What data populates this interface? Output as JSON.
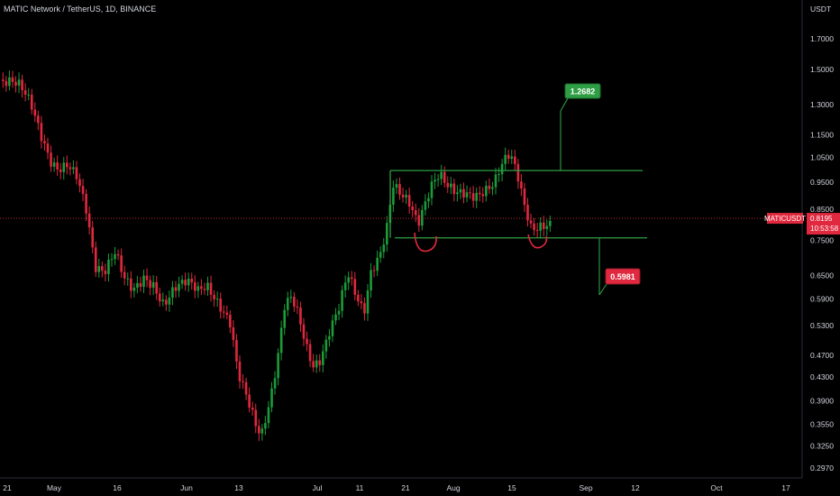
{
  "header": {
    "title": "MATIC Network / TetherUS, 1D, BINANCE"
  },
  "axis": {
    "currency": "USDT"
  },
  "colors": {
    "up": "#1b9c3a",
    "down": "#e0283e",
    "line": "#2ea043",
    "grid": "#000000",
    "price_line": "#e0283e"
  },
  "last": {
    "symbol": "MATICUSDT",
    "price": "0.8195",
    "countdown": "10:53:58"
  },
  "targets": {
    "up_label": "1.2682",
    "down_label": "0.5981"
  },
  "chart_data": {
    "type": "candlestick",
    "title": "MATIC Network / TetherUS, 1D, BINANCE",
    "ylabel": "USDT",
    "yscale": "log",
    "ylim": [
      0.285,
      2.0
    ],
    "y_ticks": [
      "1.7000",
      "1.5000",
      "1.3000",
      "1.1500",
      "1.0500",
      "0.9500",
      "0.8500",
      "0.8195",
      "0.7500",
      "0.6500",
      "0.5900",
      "0.5300",
      "0.4700",
      "0.4300",
      "0.3900",
      "0.3550",
      "0.3250",
      "0.2970"
    ],
    "x_ticks": [
      "21",
      "May",
      "16",
      "Jun",
      "13",
      "Jul",
      "11",
      "21",
      "Aug",
      "15",
      "Sep",
      "12",
      "Oct",
      "17"
    ],
    "key_points": {
      "start_price": 1.42,
      "may_low": 0.52,
      "june_low": 0.32,
      "july_high": 0.99,
      "aug_high": 1.05,
      "last_price": 0.8195
    },
    "levels": {
      "resistance": 0.995,
      "support": 0.757
    },
    "targets": {
      "upper": 1.2682,
      "lower": 0.5981
    }
  }
}
